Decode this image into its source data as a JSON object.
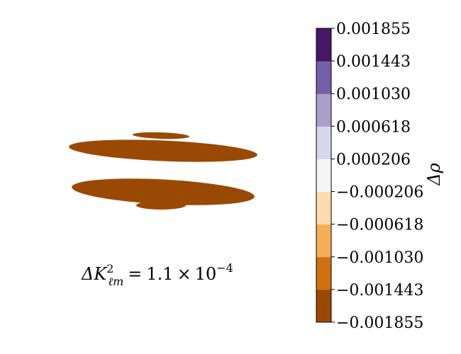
{
  "chart_data": {
    "type": "heatmap",
    "title": "",
    "annotation": "ΔK²ℓm = 1.1 × 10⁻⁴",
    "annotation_parts": {
      "lhs_symbol": "ΔK",
      "superscript": "2",
      "subscript": "ℓm",
      "equals": "=",
      "mantissa": "1.1",
      "times": "×",
      "base": "10",
      "exponent": "−4"
    },
    "colorbar": {
      "label": "Δρ",
      "ticks": [
        "−0.001855",
        "−0.001443",
        "−0.001030",
        "−0.000618",
        "−0.000206",
        "0.000206",
        "0.000618",
        "0.001030",
        "0.001443",
        "0.001855"
      ],
      "range": [
        -0.001855,
        0.001855
      ],
      "levels": 9,
      "colors": [
        "#9a4905",
        "#d06f0f",
        "#f6ad58",
        "#fddcab",
        "#f5f5f5",
        "#d6d7ea",
        "#a99fca",
        "#7360a8",
        "#461766"
      ]
    },
    "regions": [
      {
        "name": "upper-small-lobe",
        "level_color": "#9a4905",
        "value_bin": [
          -0.001855,
          -0.001443
        ]
      },
      {
        "name": "upper-lobe",
        "level_color": "#9a4905",
        "value_bin": [
          -0.001855,
          -0.001443
        ]
      },
      {
        "name": "lower-lobe",
        "level_color": "#9a4905",
        "value_bin": [
          -0.001855,
          -0.001443
        ]
      },
      {
        "name": "lower-small-lobe",
        "level_color": "#9a4905",
        "value_bin": [
          -0.001855,
          -0.001443
        ]
      }
    ]
  }
}
